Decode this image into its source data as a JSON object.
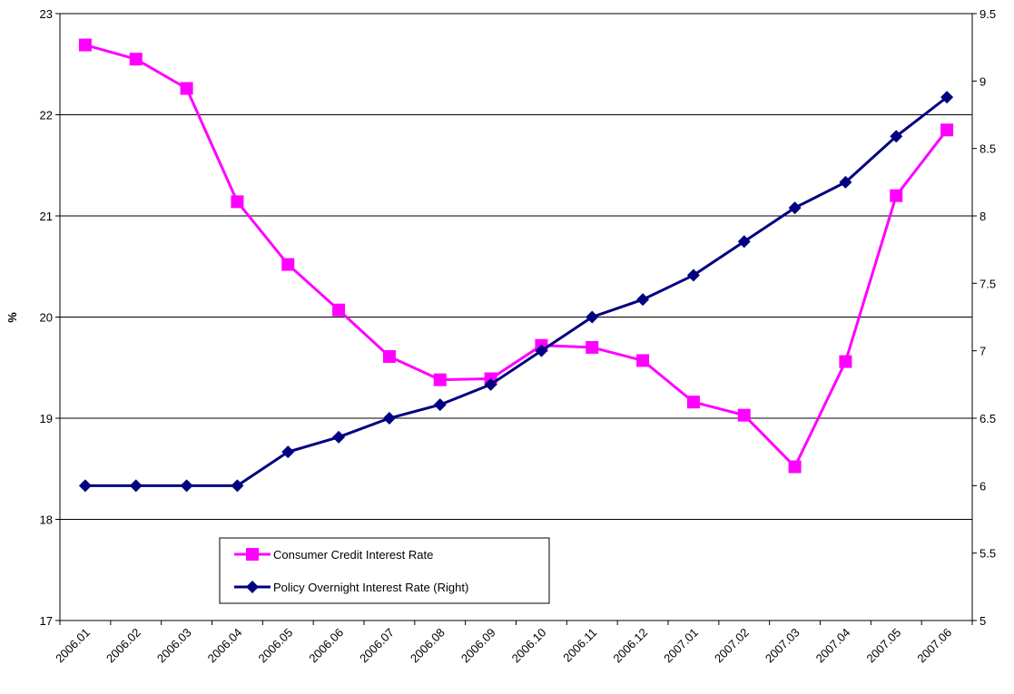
{
  "chart_data": {
    "type": "line",
    "y_label": "%",
    "categories": [
      "2006.01",
      "2006.02",
      "2006.03",
      "2006.04",
      "2006.05",
      "2006.06",
      "2006.07",
      "2006.08",
      "2006.09",
      "2006.10",
      "2006.11",
      "2006.12",
      "2007.01",
      "2007.02",
      "2007.03",
      "2007.04",
      "2007.05",
      "2007.06"
    ],
    "series": [
      {
        "name": "Consumer Credit Interest Rate",
        "color": "#ff00ff",
        "marker": "square",
        "values": [
          22.69,
          22.55,
          22.26,
          21.14,
          20.52,
          20.07,
          19.61,
          19.38,
          19.39,
          19.72,
          19.7,
          19.57,
          19.16,
          19.03,
          18.52,
          19.56,
          21.2,
          21.85
        ]
      },
      {
        "name": "Policy Overnight Interest Rate (Right)",
        "color": "#000080",
        "marker": "diamond",
        "axis": "y2",
        "values": [
          6,
          6,
          6,
          6,
          6.25,
          6.36,
          6.5,
          6.6,
          6.75,
          7,
          7.25,
          7.38,
          7.56,
          7.81,
          8.06,
          8.25,
          8.59,
          8.88
        ]
      }
    ],
    "ylim": [
      17,
      23
    ],
    "yticks": [
      17,
      18,
      19,
      20,
      21,
      22,
      23
    ],
    "y2lim": [
      5,
      9.5
    ],
    "y2ticks": [
      5,
      5.5,
      6,
      6.5,
      7,
      7.5,
      8,
      8.5,
      9,
      9.5
    ],
    "grid": true
  }
}
